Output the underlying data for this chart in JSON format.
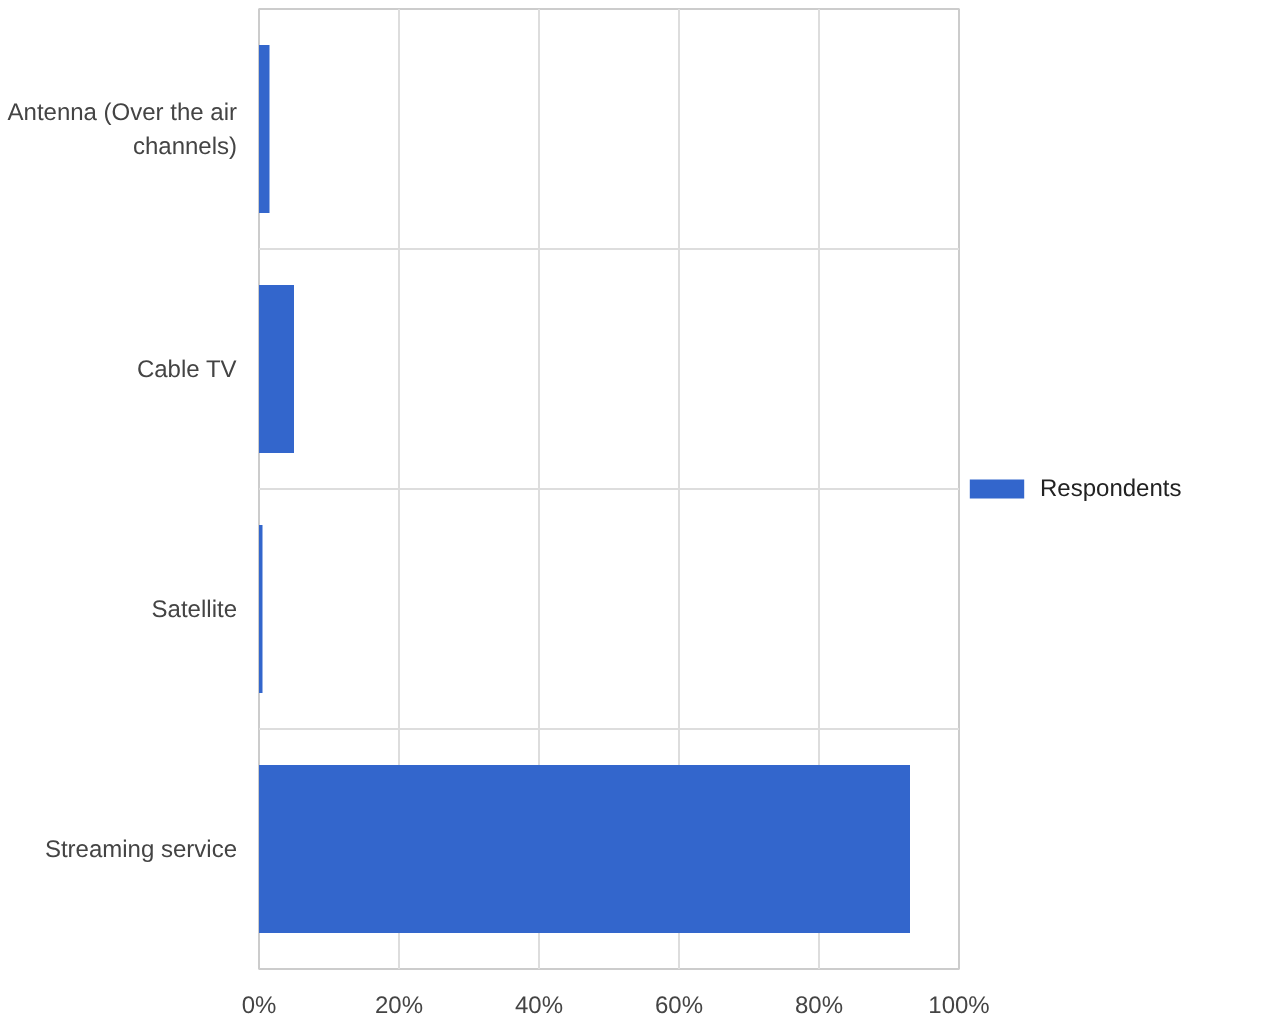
{
  "chart_data": {
    "type": "bar",
    "orientation": "horizontal",
    "categories": [
      "Antenna (Over the air channels)",
      "Cable TV",
      "Satellite",
      "Streaming service"
    ],
    "series": [
      {
        "name": "Respondents",
        "color": "#3366cc",
        "values": [
          1.5,
          5,
          0.5,
          93
        ]
      }
    ],
    "xlim": [
      0,
      100
    ],
    "xticks": [
      {
        "value": 0,
        "label": "0%"
      },
      {
        "value": 20,
        "label": "20%"
      },
      {
        "value": 40,
        "label": "40%"
      },
      {
        "value": 60,
        "label": "60%"
      },
      {
        "value": 80,
        "label": "80%"
      },
      {
        "value": 100,
        "label": "100%"
      }
    ],
    "grid": true,
    "legend": "right"
  }
}
